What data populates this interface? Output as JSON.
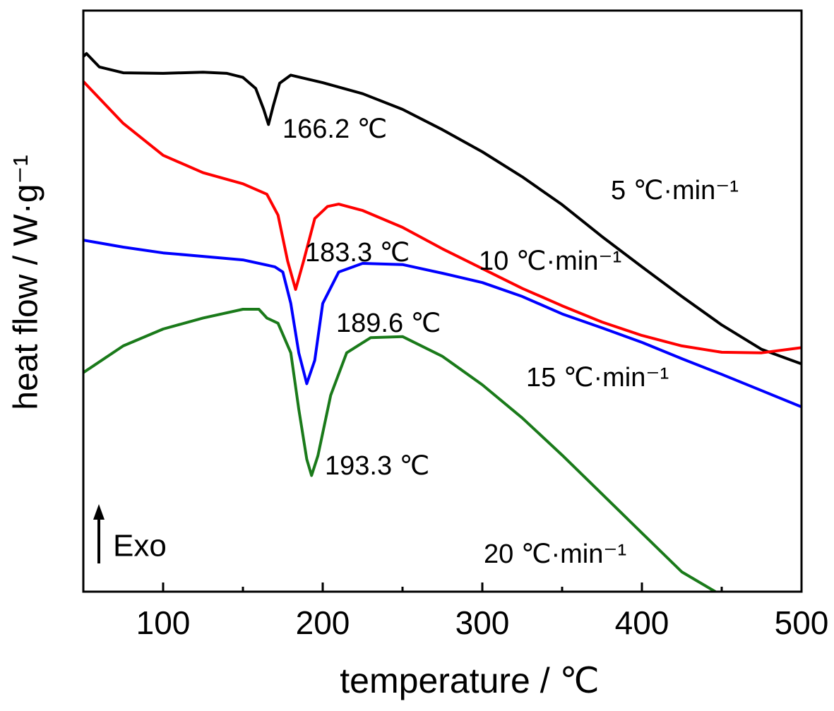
{
  "chart_data": {
    "type": "line",
    "x_label": "temperature / ℃",
    "y_label": "heat flow / W·g⁻¹",
    "exo_label": "Exo",
    "xlim": [
      50,
      500
    ],
    "xticks": [
      100,
      200,
      300,
      400,
      500
    ],
    "xminorticks": [
      150,
      250,
      350,
      450
    ],
    "ylim": [
      0,
      100
    ],
    "series": [
      {
        "name": "5 ℃·min⁻¹",
        "color": "#000000",
        "x": [
          50,
          52,
          60,
          75,
          100,
          125,
          140,
          150,
          158,
          163,
          166,
          169,
          173,
          180,
          200,
          225,
          250,
          275,
          300,
          325,
          350,
          375,
          400,
          425,
          450,
          475,
          500
        ],
        "values": [
          92.1,
          92.6,
          90.3,
          89.3,
          89.2,
          89.4,
          89.2,
          88.5,
          86.6,
          83.0,
          80.4,
          83.6,
          87.5,
          88.9,
          87.6,
          85.7,
          83.0,
          79.5,
          75.7,
          71.4,
          66.6,
          61.1,
          55.9,
          50.8,
          45.9,
          41.7,
          39.2
        ]
      },
      {
        "name": "10 ℃·min⁻¹",
        "color": "#ff0000",
        "x": [
          50,
          75,
          100,
          125,
          150,
          165,
          172,
          178,
          183,
          188,
          195,
          203,
          210,
          225,
          250,
          275,
          300,
          325,
          350,
          375,
          400,
          425,
          450,
          475,
          500
        ],
        "values": [
          87.8,
          80.6,
          75.1,
          72.1,
          70.2,
          68.4,
          64.8,
          56.9,
          52.0,
          56.9,
          64.2,
          66.3,
          66.7,
          65.6,
          62.7,
          59.0,
          55.6,
          52.2,
          49.2,
          46.4,
          44.1,
          42.3,
          41.2,
          41.1,
          42.0
        ]
      },
      {
        "name": "15 ℃·min⁻¹",
        "color": "#0000ff",
        "x": [
          50,
          75,
          100,
          125,
          150,
          170,
          175,
          180,
          185,
          190,
          195,
          200,
          210,
          225,
          250,
          275,
          300,
          325,
          350,
          375,
          400,
          425,
          450,
          475,
          500
        ],
        "values": [
          60.5,
          59.3,
          58.3,
          57.7,
          57.1,
          55.9,
          55.0,
          49.6,
          41.1,
          35.8,
          39.8,
          49.6,
          55.0,
          56.5,
          56.3,
          54.8,
          53.2,
          50.8,
          47.8,
          45.4,
          42.9,
          40.1,
          37.4,
          34.6,
          31.8
        ]
      },
      {
        "name": "20 ℃·min⁻¹",
        "color": "#1a7a1a",
        "x": [
          50,
          75,
          100,
          125,
          150,
          160,
          165,
          172,
          180,
          185,
          190,
          193,
          197,
          205,
          215,
          230,
          250,
          275,
          300,
          325,
          350,
          375,
          400,
          425,
          446
        ],
        "values": [
          37.7,
          42.3,
          45.2,
          47.1,
          48.6,
          48.6,
          47.1,
          46.2,
          41.1,
          31.4,
          22.8,
          20.0,
          23.4,
          33.8,
          41.1,
          43.7,
          43.9,
          40.5,
          35.6,
          29.9,
          23.5,
          16.8,
          10.1,
          3.4,
          0
        ]
      }
    ],
    "annotations": [
      "166.2 ℃",
      "183.3 ℃",
      "189.6 ℃",
      "193.3 ℃"
    ]
  }
}
